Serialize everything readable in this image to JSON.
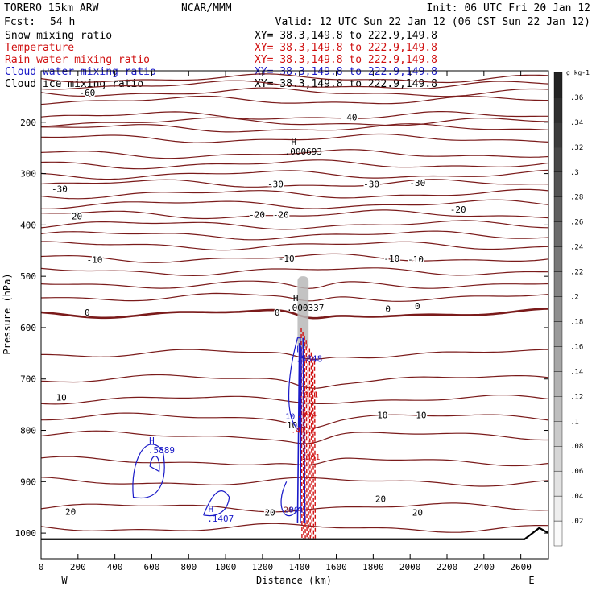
{
  "header": {
    "model": "TORERO  15km ARW",
    "center": "NCAR/MMM",
    "init": "Init: 06 UTC Fri 20 Jan 12",
    "fcst_label": "Fcst:",
    "fcst_value": "54 h",
    "valid": "Valid: 12 UTC Sun 22 Jan 12 (06 CST Sun 22 Jan 12)"
  },
  "fields": [
    {
      "name": "Snow mixing ratio",
      "xy": "XY=  38.3,149.8 to 222.9,149.8",
      "color": "#000000"
    },
    {
      "name": "Temperature",
      "xy": "XY=  38.3,149.8 to 222.9,149.8",
      "color": "#d01010"
    },
    {
      "name": "Rain water mixing ratio",
      "xy": "XY=  38.3,149.8 to 222.9,149.8",
      "color": "#d01010"
    },
    {
      "name": "Cloud water mixing ratio",
      "xy": "XY=  38.3,149.8 to 222.9,149.8",
      "color": "#1a1ac8"
    },
    {
      "name": "Cloud ice mixing ratio",
      "xy": "XY=  38.3,149.8 to 222.9,149.8",
      "color": "#000000"
    }
  ],
  "chart_data": {
    "type": "contour_cross_section",
    "xlabel": "Distance (km)",
    "ylabel": "Pressure (hPa)",
    "xlim": [
      0,
      2750
    ],
    "ylim": [
      1050,
      100
    ],
    "xticks": [
      0,
      200,
      400,
      600,
      800,
      1000,
      1200,
      1400,
      1600,
      1800,
      2000,
      2200,
      2400,
      2600
    ],
    "yticks": [
      200,
      300,
      400,
      500,
      600,
      700,
      800,
      900,
      1000
    ],
    "x_end_left": "W",
    "x_end_right": "E",
    "colors": {
      "temperature": "#7a1a1a",
      "zero_isotherm": "#7a1a1a",
      "rain": "#d01010",
      "cloud_water": "#1a1ac8",
      "ground": "#000000"
    },
    "temperature_contours": [
      {
        "value": -60,
        "label": "-60",
        "label_at": [
          [
            250,
            142
          ]
        ]
      },
      {
        "value": -40,
        "label": "-40",
        "label_at": [
          [
            1670,
            190
          ]
        ]
      },
      {
        "value": -30,
        "label": "-30",
        "label_at": [
          [
            100,
            330
          ],
          [
            1270,
            320
          ],
          [
            1790,
            320
          ],
          [
            2040,
            318
          ]
        ]
      },
      {
        "value": -20,
        "label": "-20",
        "label_at": [
          [
            180,
            383
          ],
          [
            1170,
            380
          ],
          [
            1300,
            380
          ],
          [
            2260,
            370
          ]
        ]
      },
      {
        "value": -10,
        "label": "-10",
        "label_at": [
          [
            290,
            468
          ],
          [
            1330,
            465
          ],
          [
            1900,
            465
          ],
          [
            2030,
            467
          ]
        ]
      },
      {
        "value": 0,
        "label": "0",
        "label_at": [
          [
            250,
            570
          ],
          [
            1280,
            570
          ],
          [
            1880,
            563
          ],
          [
            2040,
            558
          ]
        ]
      },
      {
        "value": 10,
        "label": "10",
        "label_at": [
          [
            110,
            736
          ],
          [
            1360,
            790
          ],
          [
            1850,
            770
          ],
          [
            2060,
            770
          ]
        ]
      },
      {
        "value": 20,
        "label": "20",
        "label_at": [
          [
            160,
            958
          ],
          [
            1240,
            960
          ],
          [
            1840,
            933
          ],
          [
            2040,
            960
          ]
        ]
      }
    ],
    "extrema": [
      {
        "type": "H",
        "value": ".000693",
        "x": 1370,
        "p": 244
      },
      {
        "type": "H",
        "value": ".000337",
        "x": 1380,
        "p": 548
      },
      {
        "type": "H",
        "value": ".5848",
        "x": 1400,
        "p": 648
      },
      {
        "type": "H",
        "value": ".5889",
        "x": 600,
        "p": 826
      },
      {
        "type": "H",
        "value": ".1407",
        "x": 920,
        "p": 959
      }
    ],
    "contour_labels": [
      {
        "text": ".001",
        "x": 1450,
        "p": 736,
        "color": "#d01010"
      },
      {
        "text": ".004",
        "x": 1440,
        "p": 775,
        "color": "#d01010"
      },
      {
        "text": ".4012",
        "x": 1420,
        "p": 805,
        "color": "#d01010"
      },
      {
        "text": ".001",
        "x": 1460,
        "p": 857,
        "color": "#d01010"
      },
      {
        "text": "10",
        "x": 1350,
        "p": 778,
        "color": "#1a1ac8"
      },
      {
        "text": "20",
        "x": 1340,
        "p": 960,
        "color": "#7a1a1a"
      },
      {
        "text": ".001",
        "x": 1370,
        "p": 960,
        "color": "#1a1ac8"
      }
    ],
    "colorbar": {
      "unit": "g kg-1",
      "values": [
        0.02,
        0.04,
        0.06,
        0.08,
        0.1,
        0.12,
        0.14,
        0.16,
        0.18,
        0.2,
        0.22,
        0.24,
        0.26,
        0.28,
        0.3,
        0.32,
        0.34,
        0.36
      ],
      "labels": [
        ".02",
        ".04",
        ".06",
        ".08",
        ".1",
        ".12",
        ".14",
        ".16",
        ".18",
        ".2",
        ".22",
        ".24",
        ".26",
        ".28",
        ".3",
        ".32",
        ".34",
        ".36"
      ]
    }
  }
}
